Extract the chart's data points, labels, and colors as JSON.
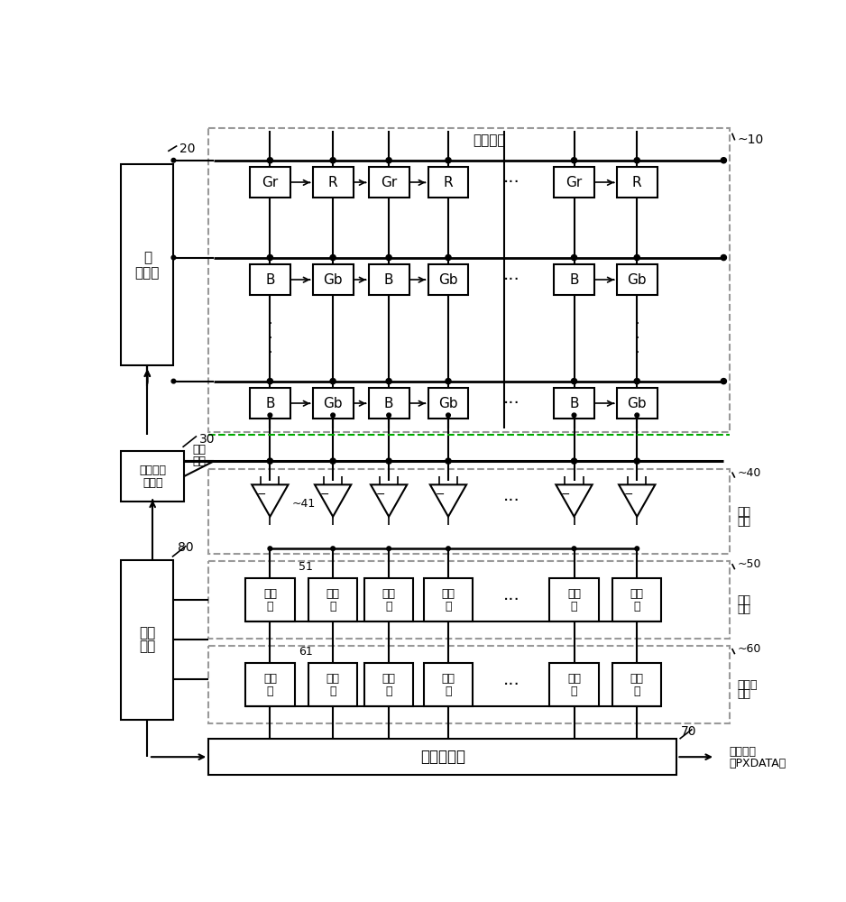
{
  "bg_color": "#ffffff",
  "line_color": "#000000",
  "labels": {
    "pixel_array": "像素阵列",
    "row_decoder_line1": "行",
    "row_decoder_line2": "解码器",
    "ramp_gen_line1": "斜坡信号",
    "ramp_gen_line2": "发生器",
    "ramp_signal_line1": "斜坡",
    "ramp_signal_line2": "信号",
    "comparator_unit_line1": "比较",
    "comparator_unit_line2": "单元",
    "counter_unit_line1": "计数",
    "counter_unit_line2": "单元",
    "memory_unit_line1": "存储器",
    "memory_unit_line2": "单元",
    "control_unit_line1": "控制",
    "control_unit_line2": "单元",
    "col_read": "列读出电路",
    "pixel_data_line1": "像素数据",
    "pixel_data_line2": "（PXDATA）",
    "counter_box": "计数\n器",
    "memory_box": "存储\n器",
    "ref_20": "20",
    "ref_10": "~10",
    "ref_30": "30",
    "ref_40": "~40",
    "ref_41": "~41",
    "ref_50": "~50",
    "ref_51": "51",
    "ref_60": "~60",
    "ref_61": "61",
    "ref_70": "70",
    "ref_80": "80"
  },
  "pixel_row1": [
    "Gr",
    "R",
    "Gr",
    "R",
    "Gr",
    "R"
  ],
  "pixel_row2": [
    "B",
    "Gb",
    "B",
    "Gb",
    "B",
    "Gb"
  ],
  "pixel_row3": [
    "B",
    "Gb",
    "B",
    "Gb",
    "B",
    "Gb"
  ]
}
